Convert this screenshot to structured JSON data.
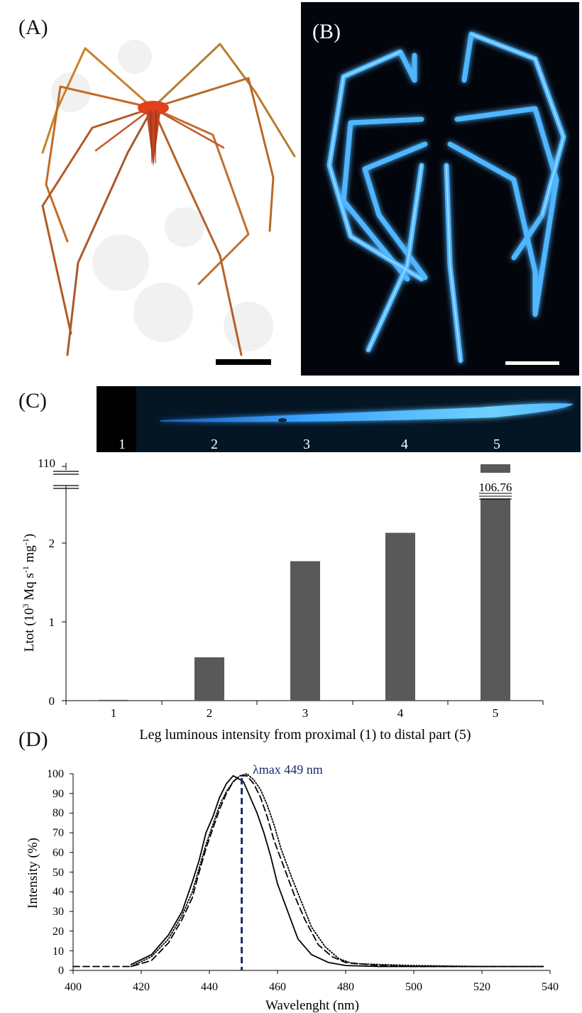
{
  "panels": {
    "a": {
      "label": "(A)"
    },
    "b": {
      "label": "(B)"
    },
    "c": {
      "label": "(C)",
      "strip_labels": [
        "1",
        "2",
        "3",
        "4",
        "5"
      ]
    },
    "d": {
      "label": "(D)"
    }
  },
  "colors": {
    "bar": "#595959",
    "glow": "#4fb6ff",
    "peak_line": "#1a2a6c",
    "specimen": "#d8541e"
  },
  "chart_data": [
    {
      "type": "bar",
      "categories": [
        "1",
        "2",
        "3",
        "4",
        "5"
      ],
      "values": [
        0.01,
        0.55,
        1.77,
        2.13,
        106.76
      ],
      "xlabel": "Leg luminous intensity from proximal (1) to distal part (5)",
      "ylabel_main": "Ltot (10",
      "ylabel_sup1": "3",
      "ylabel_mid": " Mq s",
      "ylabel_sup2": "-1",
      "ylabel_mid2": " mg",
      "ylabel_sup3": "-1",
      "ylabel_end": ")",
      "yticks": [
        "0",
        "1",
        "2"
      ],
      "ybreak_label": "110",
      "ylim": [
        0,
        2.5
      ],
      "axis_break": true,
      "data_labels": {
        "4": "106.76"
      }
    },
    {
      "type": "line",
      "xlabel": "Wavelenght (nm)",
      "ylabel": "Intensity (%)",
      "xticks": [
        "400",
        "420",
        "440",
        "460",
        "480",
        "500",
        "520",
        "540"
      ],
      "yticks": [
        "0",
        "10",
        "20",
        "30",
        "40",
        "50",
        "60",
        "70",
        "80",
        "90",
        "100"
      ],
      "xlim": [
        400,
        540
      ],
      "ylim": [
        0,
        100
      ],
      "annotation": "λmax  449 nm",
      "peak_x": 449.5,
      "series": [
        {
          "style": "solid",
          "x": [
            417,
            423,
            428,
            432,
            435,
            437,
            439,
            441,
            443,
            445,
            447,
            448,
            450,
            452,
            454,
            456,
            458,
            460,
            463,
            466,
            470,
            475,
            480,
            490,
            500,
            520,
            538
          ],
          "y": [
            3,
            8,
            18,
            30,
            45,
            56,
            70,
            78,
            88,
            95,
            99,
            98,
            96,
            88,
            80,
            70,
            58,
            44,
            30,
            16,
            8,
            4,
            2.5,
            2,
            2,
            2,
            2
          ]
        },
        {
          "style": "dashed",
          "x": [
            400,
            417,
            423,
            428,
            432,
            435,
            437,
            439,
            441,
            443,
            445,
            447,
            449,
            451,
            453,
            455,
            457,
            459,
            462,
            465,
            468,
            472,
            476,
            480,
            490,
            500,
            520,
            538
          ],
          "y": [
            2,
            2,
            5,
            14,
            26,
            37,
            50,
            62,
            72,
            82,
            90,
            96,
            99,
            99,
            95,
            88,
            78,
            66,
            52,
            38,
            26,
            13,
            7,
            4,
            2.5,
            2,
            2,
            2
          ]
        },
        {
          "style": "dotted",
          "x": [
            417,
            423,
            428,
            432,
            435,
            437,
            439,
            441,
            443,
            445,
            447,
            449,
            451,
            453,
            455,
            457,
            459,
            461,
            464,
            467,
            470,
            474,
            478,
            482,
            490,
            500,
            520,
            538
          ],
          "y": [
            2,
            7,
            16,
            28,
            40,
            52,
            64,
            74,
            84,
            91,
            96,
            99,
            100,
            97,
            92,
            84,
            74,
            62,
            48,
            35,
            22,
            12,
            6,
            3.5,
            3,
            2.5,
            2,
            2
          ]
        }
      ]
    }
  ]
}
